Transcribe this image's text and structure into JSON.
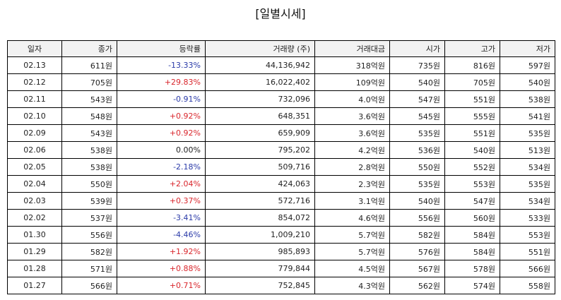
{
  "title": "[일별시세]",
  "columns": [
    "일자",
    "종가",
    "등락률",
    "거래량 (주)",
    "거래대금",
    "시가",
    "고가",
    "저가"
  ],
  "rows": [
    {
      "date": "02.13",
      "close": "611원",
      "change": "-13.33%",
      "dir": "down",
      "volume": "44,136,942",
      "amount": "318억원",
      "open": "735원",
      "high": "816원",
      "low": "597원"
    },
    {
      "date": "02.12",
      "close": "705원",
      "change": "+29.83%",
      "dir": "up",
      "volume": "16,022,402",
      "amount": "109억원",
      "open": "540원",
      "high": "705원",
      "low": "540원"
    },
    {
      "date": "02.11",
      "close": "543원",
      "change": "-0.91%",
      "dir": "down",
      "volume": "732,096",
      "amount": "4.0억원",
      "open": "547원",
      "high": "551원",
      "low": "538원"
    },
    {
      "date": "02.10",
      "close": "548원",
      "change": "+0.92%",
      "dir": "up",
      "volume": "648,351",
      "amount": "3.6억원",
      "open": "545원",
      "high": "555원",
      "low": "541원"
    },
    {
      "date": "02.09",
      "close": "543원",
      "change": "+0.92%",
      "dir": "up",
      "volume": "659,909",
      "amount": "3.6억원",
      "open": "535원",
      "high": "551원",
      "low": "535원"
    },
    {
      "date": "02.06",
      "close": "538원",
      "change": "0.00%",
      "dir": "flat",
      "volume": "795,202",
      "amount": "4.2억원",
      "open": "536원",
      "high": "540원",
      "low": "513원"
    },
    {
      "date": "02.05",
      "close": "538원",
      "change": "-2.18%",
      "dir": "down",
      "volume": "509,716",
      "amount": "2.8억원",
      "open": "550원",
      "high": "552원",
      "low": "534원"
    },
    {
      "date": "02.04",
      "close": "550원",
      "change": "+2.04%",
      "dir": "up",
      "volume": "424,063",
      "amount": "2.3억원",
      "open": "535원",
      "high": "553원",
      "low": "535원"
    },
    {
      "date": "02.03",
      "close": "539원",
      "change": "+0.37%",
      "dir": "up",
      "volume": "572,716",
      "amount": "3.1억원",
      "open": "540원",
      "high": "547원",
      "low": "534원"
    },
    {
      "date": "02.02",
      "close": "537원",
      "change": "-3.41%",
      "dir": "down",
      "volume": "854,072",
      "amount": "4.6억원",
      "open": "556원",
      "high": "560원",
      "low": "533원"
    },
    {
      "date": "01.30",
      "close": "556원",
      "change": "-4.46%",
      "dir": "down",
      "volume": "1,009,210",
      "amount": "5.7억원",
      "open": "582원",
      "high": "584원",
      "low": "553원"
    },
    {
      "date": "01.29",
      "close": "582원",
      "change": "+1.92%",
      "dir": "up",
      "volume": "985,893",
      "amount": "5.7억원",
      "open": "576원",
      "high": "584원",
      "low": "551원"
    },
    {
      "date": "01.28",
      "close": "571원",
      "change": "+0.88%",
      "dir": "up",
      "volume": "779,844",
      "amount": "4.5억원",
      "open": "567원",
      "high": "578원",
      "low": "566원"
    },
    {
      "date": "01.27",
      "close": "566원",
      "change": "+0.71%",
      "dir": "up",
      "volume": "752,845",
      "amount": "4.3억원",
      "open": "562원",
      "high": "574원",
      "low": "558원"
    }
  ]
}
